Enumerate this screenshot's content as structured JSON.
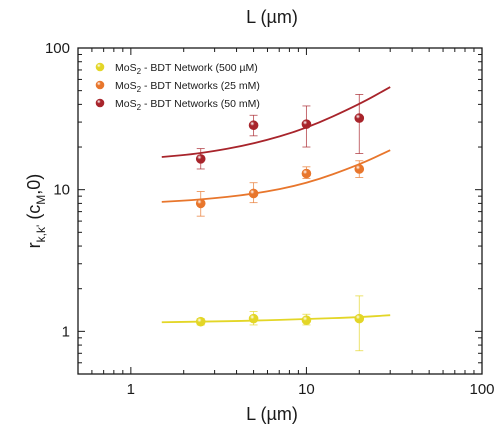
{
  "chart_data": {
    "type": "scatter",
    "x_scale": "log",
    "y_scale": "log",
    "xlim": [
      0.5,
      100
    ],
    "ylim": [
      0.5,
      100
    ],
    "x_ticks": [
      1,
      10,
      100
    ],
    "x_tick_labels": [
      "1",
      "10",
      "100"
    ],
    "y_ticks": [
      1,
      10,
      100
    ],
    "y_tick_labels": [
      "1",
      "10",
      "100"
    ],
    "xlabel": "L (µm)",
    "top_xlabel": "L (µm)",
    "ylabel_parts": {
      "base": "r",
      "base_sub": "k,k'",
      "open": " (c",
      "arg_sub": "M",
      "close": ",0)"
    },
    "grid": false,
    "legend_position": "top-left",
    "series": [
      {
        "label_main": "MoS",
        "label_sub": "2",
        "label_rest": " - BDT Network (500 µM)",
        "color": "#e3d627",
        "x": [
          2.5,
          5,
          10,
          20
        ],
        "y": [
          1.17,
          1.23,
          1.2,
          1.23
        ],
        "y_err_low": [
          0.06,
          0.12,
          0.09,
          0.5
        ],
        "y_err_high": [
          0.06,
          0.15,
          0.12,
          0.55
        ],
        "fit_x": [
          1.5,
          2.5,
          5,
          10,
          20,
          30
        ],
        "fit_y": [
          1.16,
          1.17,
          1.19,
          1.22,
          1.26,
          1.3
        ]
      },
      {
        "label_main": "MoS",
        "label_sub": "2",
        "label_rest": " - BDT Networks (25 mM)",
        "color": "#e8762c",
        "x": [
          2.5,
          5,
          10,
          20
        ],
        "y": [
          8,
          9.4,
          13,
          14
        ],
        "y_err_low": [
          1.5,
          1.3,
          1.0,
          1.8
        ],
        "y_err_high": [
          1.7,
          1.8,
          1.5,
          2.0
        ],
        "fit_x": [
          1.5,
          2.5,
          5,
          10,
          20,
          30
        ],
        "fit_y": [
          8.2,
          8.5,
          9.3,
          11,
          15,
          19
        ]
      },
      {
        "label_main": "MoS",
        "label_sub": "2",
        "label_rest": " - BDT Networks (50 mM)",
        "color": "#a8242b",
        "x": [
          2.5,
          5,
          10,
          20
        ],
        "y": [
          16.5,
          28.5,
          29,
          32
        ],
        "y_err_low": [
          2.5,
          4.5,
          9,
          14
        ],
        "y_err_high": [
          3,
          5,
          10,
          15
        ],
        "fit_x": [
          1.5,
          2.5,
          5,
          10,
          20,
          30
        ],
        "fit_y": [
          17,
          18,
          21,
          27,
          40,
          53
        ]
      }
    ]
  }
}
